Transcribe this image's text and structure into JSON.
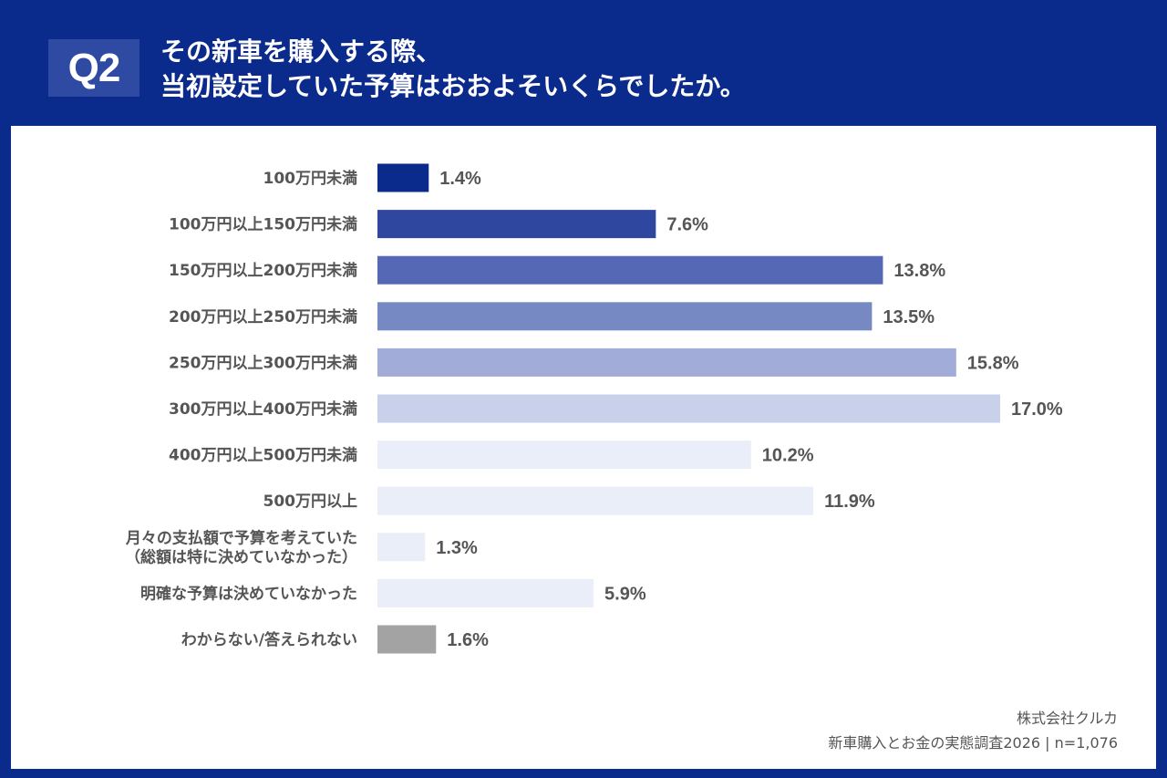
{
  "header": {
    "badge": "Q2",
    "title_line1": "その新車を購入する際、",
    "title_line2": "当初設定していた予算はおおよそいくらでしたか。"
  },
  "footer": {
    "company": "株式会社クルカ",
    "source": "新車購入とお金の実態調査2026 | n=1,076"
  },
  "colors": {
    "background": "#0a2a8c",
    "panel": "#ffffff",
    "text": "#555555"
  },
  "chart_data": {
    "type": "bar",
    "orientation": "horizontal",
    "title": "当初設定していた予算",
    "xlabel": "",
    "ylabel": "",
    "unit": "%",
    "xlim": [
      0,
      17.0
    ],
    "grid": false,
    "categories": [
      [
        "100万円未満"
      ],
      [
        "100万円以上150万円未満"
      ],
      [
        "150万円以上200万円未満"
      ],
      [
        "200万円以上250万円未満"
      ],
      [
        "250万円以上300万円未満"
      ],
      [
        "300万円以上400万円未満"
      ],
      [
        "400万円以上500万円未満"
      ],
      [
        "500万円以上"
      ],
      [
        "月々の支払額で予算を考えていた",
        "（総額は特に決めていなかった）"
      ],
      [
        "明確な予算は決めていなかった"
      ],
      [
        "わからない/答えられない"
      ]
    ],
    "values": [
      1.4,
      7.6,
      13.8,
      13.5,
      15.8,
      17.0,
      10.2,
      11.9,
      1.3,
      5.9,
      1.6
    ],
    "value_labels": [
      "1.4%",
      "7.6%",
      "13.8%",
      "13.5%",
      "15.8%",
      "17.0%",
      "10.2%",
      "11.9%",
      "1.3%",
      "5.9%",
      "1.6%"
    ],
    "bar_colors": [
      "#0a2a8c",
      "#3047a0",
      "#5468b5",
      "#7789c2",
      "#a2acd8",
      "#c8d0ea",
      "#e9eef8",
      "#e9eef8",
      "#e9eef8",
      "#e9eef8",
      "#a3a3a3"
    ]
  }
}
